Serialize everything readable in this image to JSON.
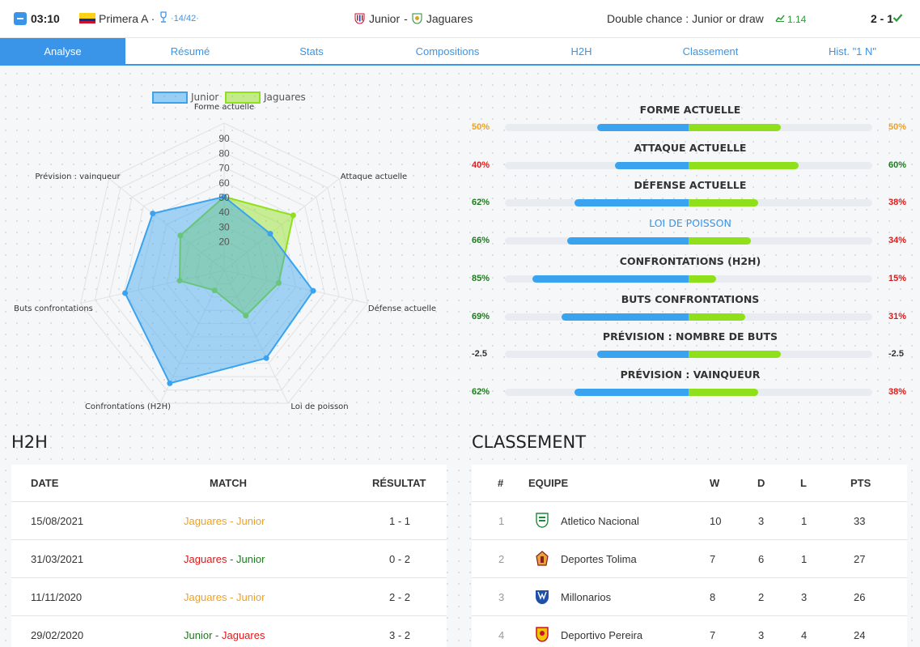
{
  "header": {
    "time": "03:10",
    "league": "Primera A ·",
    "round": "·14/42·",
    "home_team": "Junior",
    "separator": "-",
    "away_team": "Jaguares",
    "double_chance": "Double chance : Junior or draw",
    "odds": "1.14",
    "score": "2 - 1"
  },
  "tabs": [
    {
      "label": "Analyse"
    },
    {
      "label": "Résumé"
    },
    {
      "label": "Stats"
    },
    {
      "label": "Compositions"
    },
    {
      "label": "H2H"
    },
    {
      "label": "Classement"
    },
    {
      "label": "Hist. \"1 N\""
    }
  ],
  "chart_data": {
    "type": "radar",
    "legend": [
      "Junior",
      "Jaguares"
    ],
    "axes": [
      "Forme actuelle",
      "Attaque actuelle",
      "Défense actuelle",
      "Loi de poisson",
      "Confrontations (H2H)",
      "Buts confrontations",
      "Prévision : vainqueur"
    ],
    "ticks": [
      "20",
      "30",
      "40",
      "50",
      "60",
      "70",
      "80",
      "90"
    ],
    "rmax": 100,
    "series": [
      {
        "name": "Junior",
        "color": "#3aa3f0",
        "values": [
          50,
          40,
          62,
          66,
          85,
          69,
          62
        ]
      },
      {
        "name": "Jaguares",
        "color": "#8fe01a",
        "values": [
          50,
          60,
          38,
          34,
          15,
          31,
          38
        ]
      }
    ]
  },
  "stats": [
    {
      "title": "FORME ACTUELLE",
      "left": "50%",
      "right": "50%",
      "left_color": "orange",
      "right_color": "orange",
      "home": 50,
      "away": 50,
      "highlight": false
    },
    {
      "title": "ATTAQUE ACTUELLE",
      "left": "40%",
      "right": "60%",
      "left_color": "red",
      "right_color": "green",
      "home": 40,
      "away": 60,
      "highlight": false
    },
    {
      "title": "DÉFENSE ACTUELLE",
      "left": "62%",
      "right": "38%",
      "left_color": "green",
      "right_color": "red",
      "home": 62,
      "away": 38,
      "highlight": false
    },
    {
      "title": "LOI DE POISSON",
      "left": "66%",
      "right": "34%",
      "left_color": "green",
      "right_color": "red",
      "home": 66,
      "away": 34,
      "highlight": true
    },
    {
      "title": "CONFRONTATIONS (H2H)",
      "left": "85%",
      "right": "15%",
      "left_color": "green",
      "right_color": "red",
      "home": 85,
      "away": 15,
      "highlight": false
    },
    {
      "title": "BUTS CONFRONTATIONS",
      "left": "69%",
      "right": "31%",
      "left_color": "green",
      "right_color": "red",
      "home": 69,
      "away": 31,
      "highlight": false
    },
    {
      "title": "PRÉVISION : NOMBRE DE BUTS",
      "left": "-2.5",
      "right": "-2.5",
      "left_color": "dark",
      "right_color": "dark",
      "home": 50,
      "away": 50,
      "highlight": false
    },
    {
      "title": "PRÉVISION : VAINQUEUR",
      "left": "62%",
      "right": "38%",
      "left_color": "green",
      "right_color": "red",
      "home": 62,
      "away": 38,
      "highlight": false
    }
  ],
  "h2h": {
    "title": "H2H",
    "columns": [
      "DATE",
      "MATCH",
      "RÉSULTAT"
    ],
    "rows": [
      {
        "date": "15/08/2021",
        "home": "Jaguares",
        "away": "Junior",
        "result": "1 - 1",
        "home_color": "#f0a020",
        "away_color": "#f0a020"
      },
      {
        "date": "31/03/2021",
        "home": "Jaguares",
        "away": "Junior",
        "result": "0 - 2",
        "home_color": "#e01818",
        "away_color": "#1e7a1e"
      },
      {
        "date": "11/11/2020",
        "home": "Jaguares",
        "away": "Junior",
        "result": "2 - 2",
        "home_color": "#f0a020",
        "away_color": "#f0a020"
      },
      {
        "date": "29/02/2020",
        "home": "Junior",
        "away": "Jaguares",
        "result": "3 - 2",
        "home_color": "#1e7a1e",
        "away_color": "#e01818"
      }
    ]
  },
  "classement": {
    "title": "CLASSEMENT",
    "columns": [
      "#",
      "EQUIPE",
      "W",
      "D",
      "L",
      "PTS"
    ],
    "rows": [
      {
        "pos": "1",
        "team": "Atletico Nacional",
        "w": "10",
        "d": "3",
        "l": "1",
        "pts": "33",
        "logo": "nacional-logo"
      },
      {
        "pos": "2",
        "team": "Deportes Tolima",
        "w": "7",
        "d": "6",
        "l": "1",
        "pts": "27",
        "logo": "tolima-logo"
      },
      {
        "pos": "3",
        "team": "Millonarios",
        "w": "8",
        "d": "2",
        "l": "3",
        "pts": "26",
        "logo": "millonarios-logo"
      },
      {
        "pos": "4",
        "team": "Deportivo Pereira",
        "w": "7",
        "d": "3",
        "l": "4",
        "pts": "24",
        "logo": "pereira-logo"
      }
    ]
  }
}
